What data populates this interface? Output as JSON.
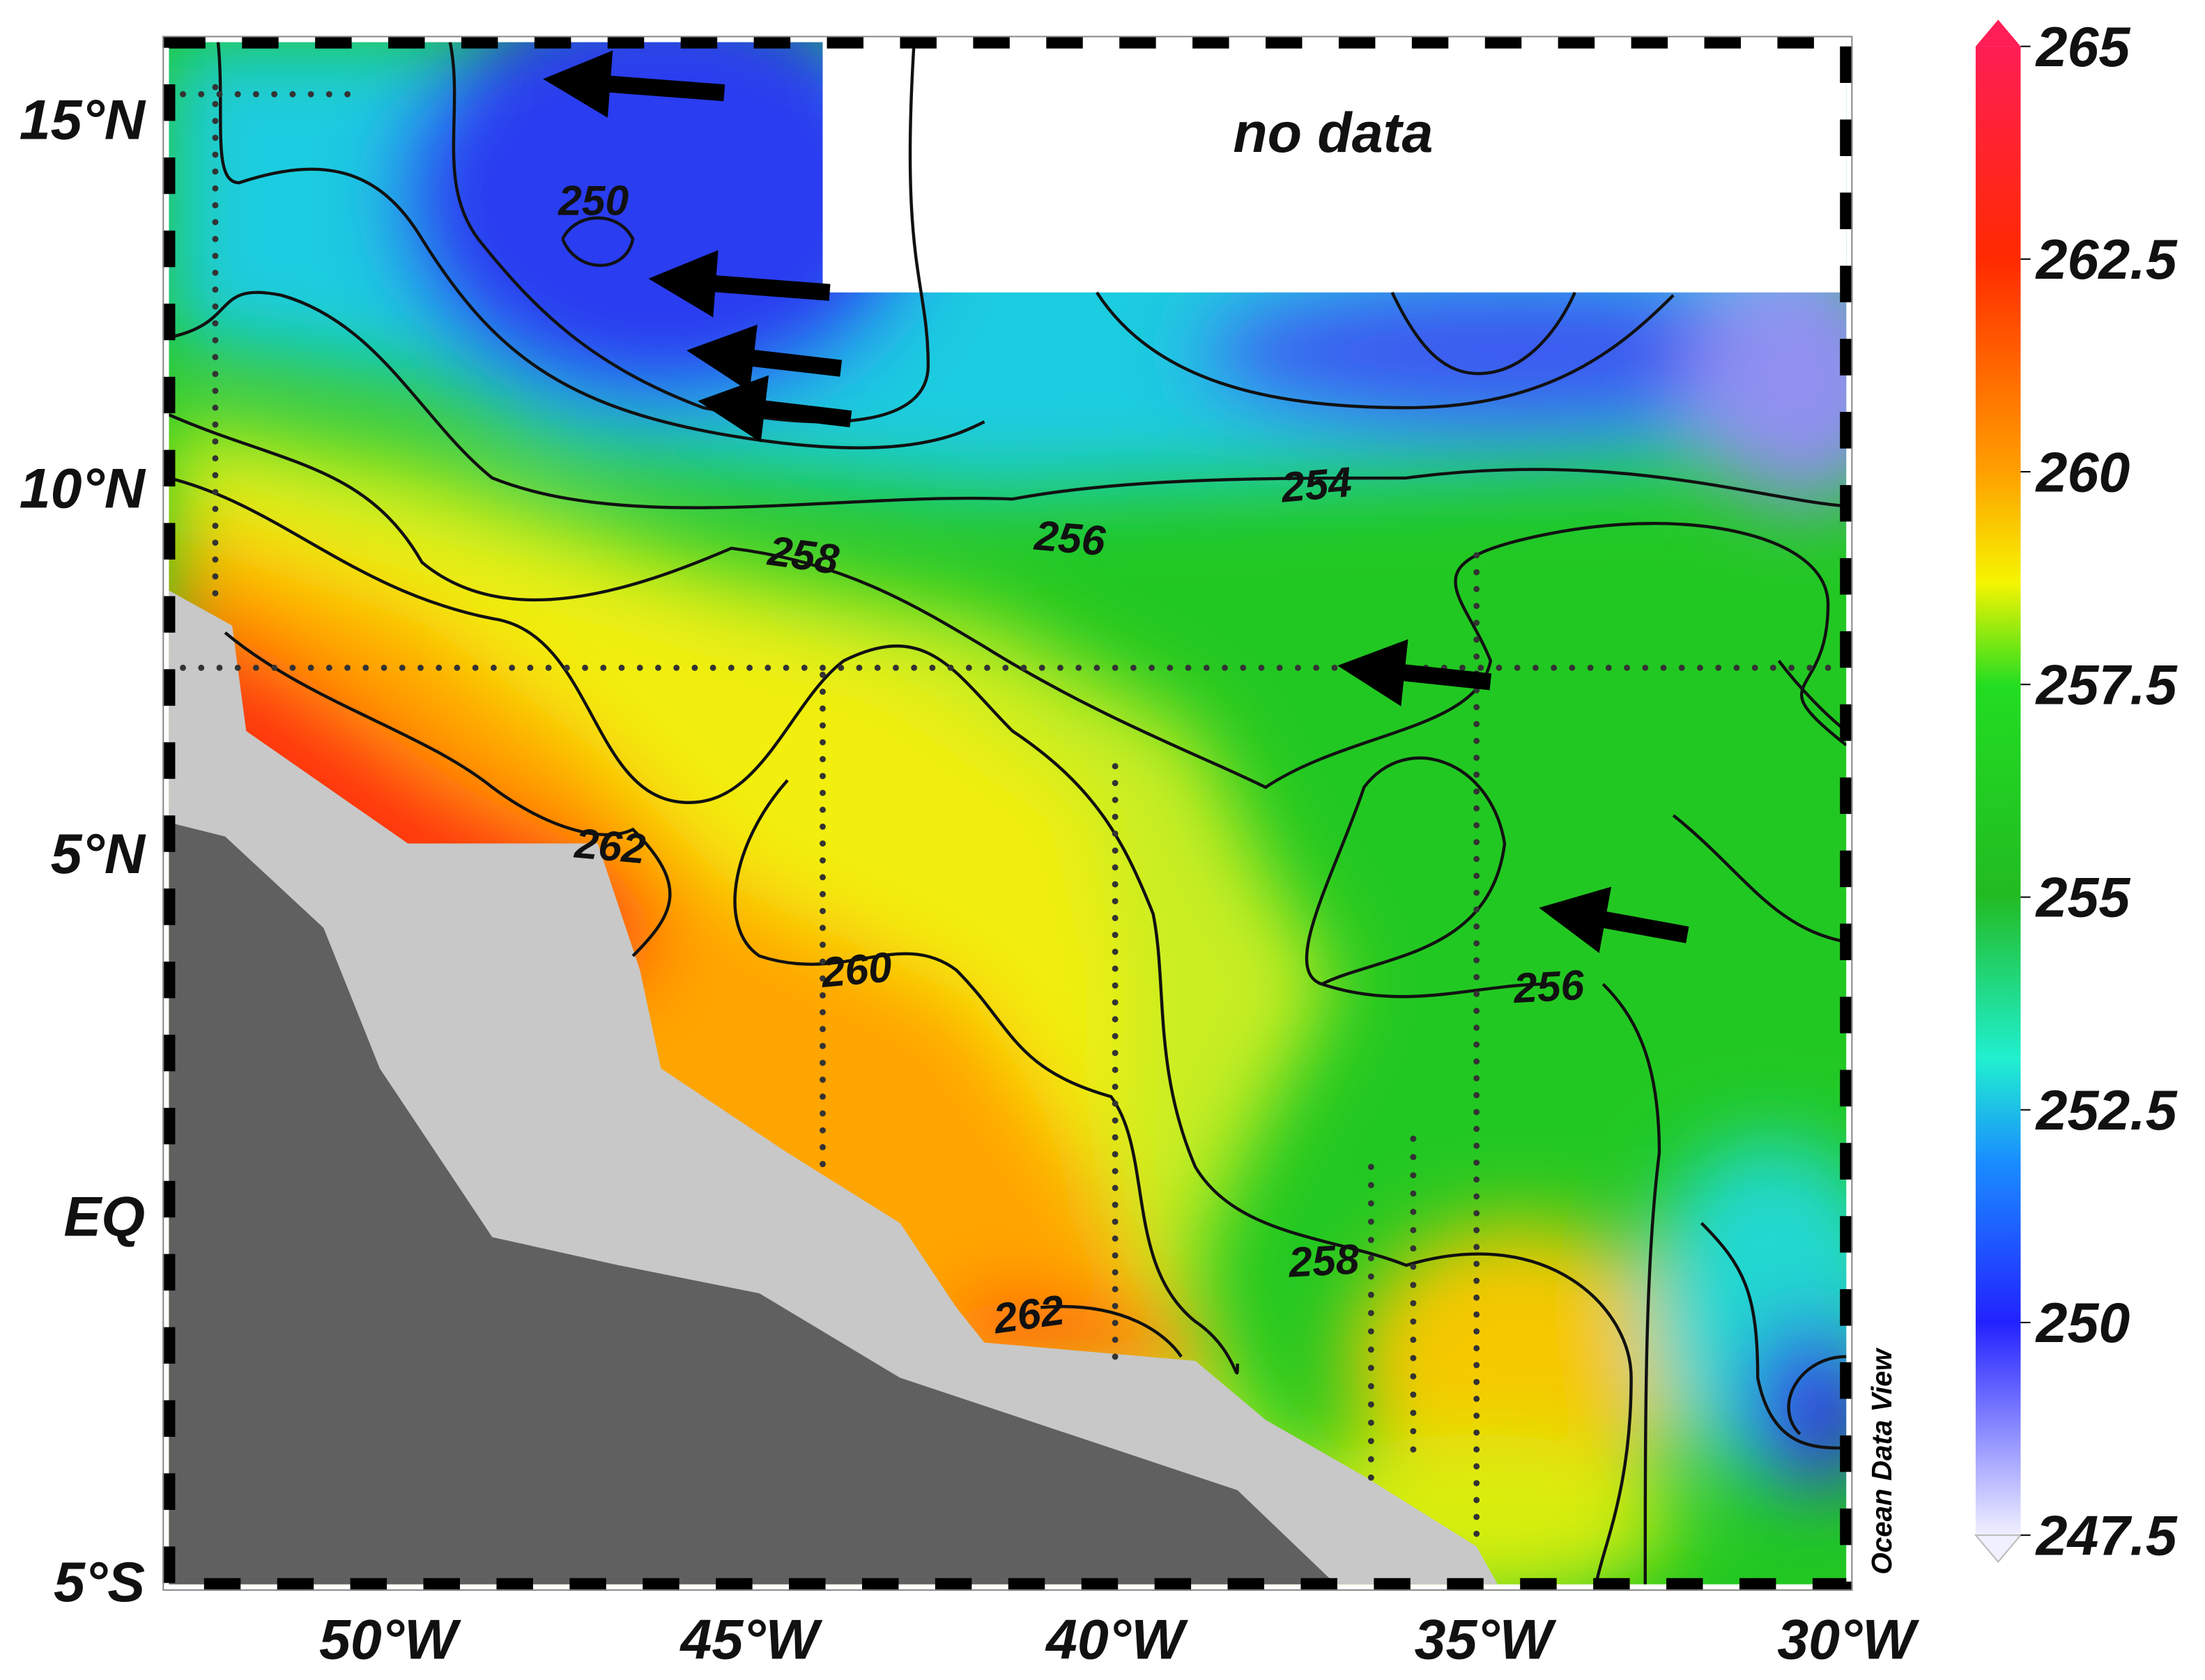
{
  "map": {
    "no_data_label": "no data",
    "credit": "Ocean Data View",
    "latitude_labels": [
      "15°N",
      "10°N",
      "5°N",
      "EQ",
      "5°S"
    ],
    "longitude_labels": [
      "50°W",
      "45°W",
      "40°W",
      "35°W",
      "30°W"
    ],
    "contour_labels": [
      250,
      254,
      258,
      256,
      262,
      260,
      262,
      258,
      256
    ],
    "colorbar": {
      "ticks": [
        265,
        262.5,
        260,
        257.5,
        255,
        252.5,
        250,
        247.5
      ]
    }
  }
}
